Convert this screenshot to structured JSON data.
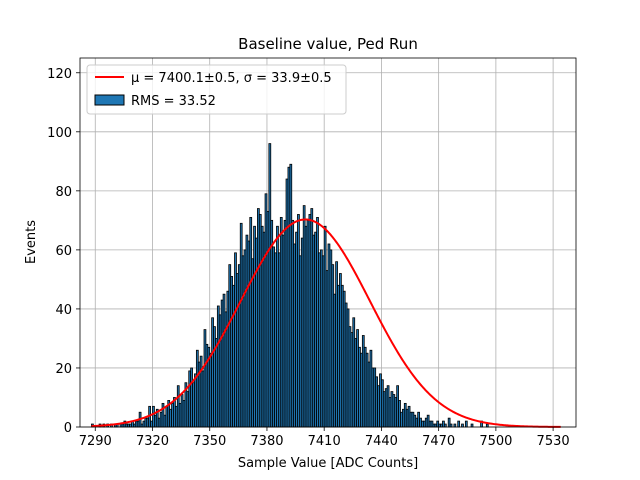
{
  "chart_data": {
    "type": "bar",
    "title": "Baseline value, Ped Run",
    "xlabel": "Sample Value [ADC Counts]",
    "ylabel": "Events",
    "xlim": [
      7282,
      7542
    ],
    "ylim": [
      0,
      125
    ],
    "x_ticks": [
      7290,
      7320,
      7350,
      7380,
      7410,
      7440,
      7470,
      7500,
      7530
    ],
    "y_ticks": [
      0,
      20,
      40,
      60,
      80,
      100,
      120
    ],
    "grid": true,
    "legend_position": "top-left",
    "colors": {
      "bars": "#1f77b4",
      "bar_edge": "#000000",
      "fit": "#ff0000",
      "grid": "#b0b0b0"
    },
    "series": [
      {
        "name": "RMS = 33.52",
        "kind": "histogram",
        "bin_start": 7288,
        "bin_width": 1,
        "counts": [
          1,
          0,
          0,
          0,
          1,
          0,
          1,
          0,
          1,
          0,
          1,
          0,
          1,
          1,
          0,
          1,
          1,
          2,
          1,
          1,
          1,
          2,
          1,
          2,
          2,
          5,
          1,
          2,
          3,
          3,
          7,
          2,
          7,
          4,
          6,
          3,
          5,
          8,
          4,
          7,
          9,
          6,
          8,
          10,
          7,
          14,
          8,
          11,
          9,
          15,
          12,
          19,
          20,
          15,
          18,
          26,
          22,
          24,
          19,
          33,
          28,
          27,
          25,
          37,
          34,
          30,
          41,
          38,
          43,
          45,
          39,
          46,
          55,
          51,
          48,
          59,
          52,
          55,
          69,
          58,
          60,
          65,
          63,
          71,
          57,
          68,
          64,
          74,
          72,
          68,
          66,
          79,
          73,
          96,
          70,
          61,
          59,
          68,
          59,
          71,
          65,
          70,
          84,
          88,
          89,
          70,
          62,
          66,
          72,
          58,
          64,
          75,
          68,
          70,
          72,
          74,
          65,
          66,
          71,
          59,
          60,
          58,
          68,
          53,
          62,
          60,
          55,
          45,
          56,
          48,
          52,
          48,
          46,
          42,
          40,
          34,
          32,
          37,
          30,
          33,
          27,
          25,
          31,
          27,
          25,
          22,
          26,
          20,
          20,
          17,
          14,
          18,
          16,
          12,
          13,
          14,
          10,
          12,
          11,
          10,
          14,
          9,
          5,
          6,
          8,
          6,
          7,
          5,
          5,
          4,
          3,
          5,
          3,
          2,
          2,
          3,
          4,
          2,
          2,
          1,
          1,
          2,
          1,
          1,
          2,
          1,
          0,
          3,
          1,
          0,
          1,
          0,
          2,
          0,
          1,
          0,
          2,
          0,
          0,
          1,
          0,
          0,
          0,
          0,
          2,
          0,
          0,
          1,
          0,
          0,
          0,
          0,
          0
        ]
      },
      {
        "name": "μ = 7400.1±0.5, σ = 33.9±0.5",
        "kind": "gaussian_fit",
        "mean": 7400.1,
        "sigma": 33.9,
        "amplitude": 70.3,
        "x_range": [
          7288,
          7534
        ]
      }
    ]
  }
}
